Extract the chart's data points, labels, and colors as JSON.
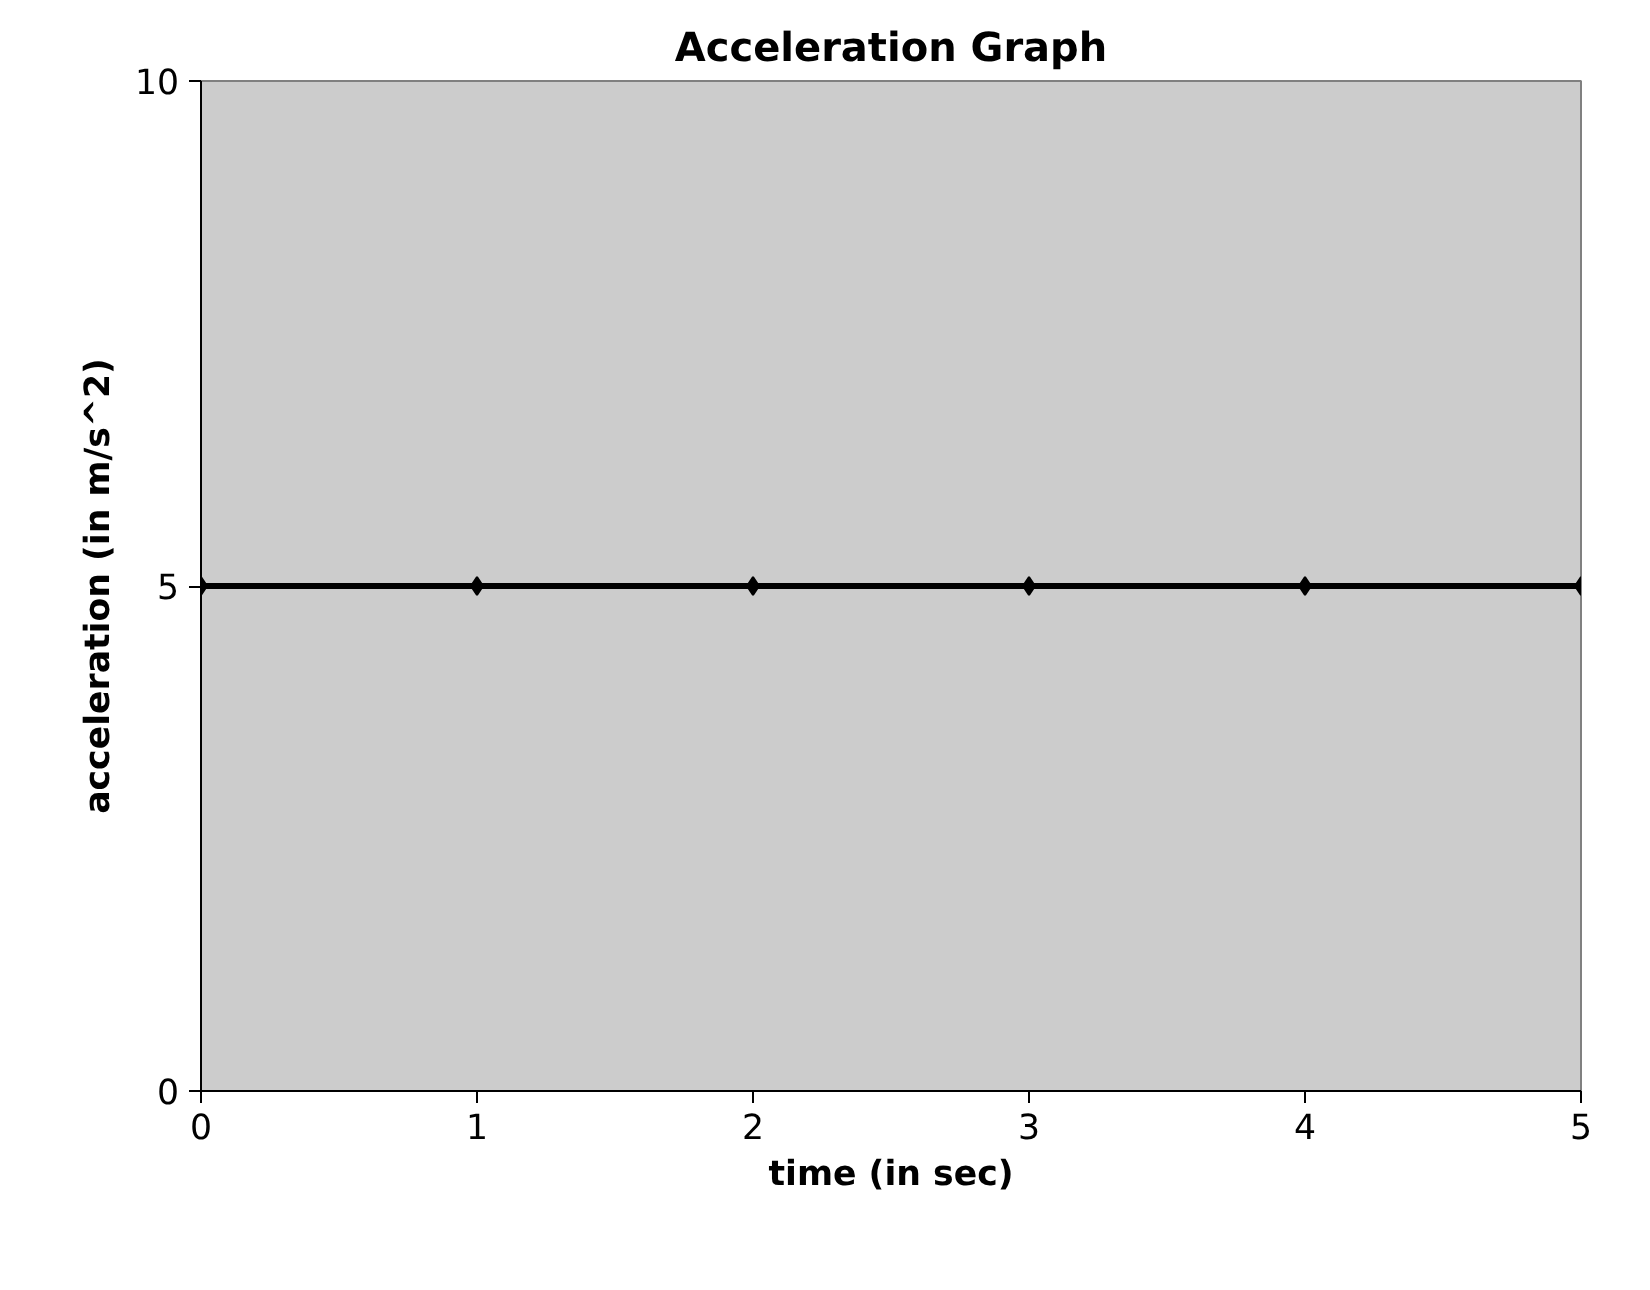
{
  "chart_data": {
    "type": "line",
    "title": "Acceleration Graph",
    "xlabel": "time (in sec)",
    "ylabel": "acceleration (in m/s^2)",
    "x": [
      0,
      1,
      2,
      3,
      4,
      5
    ],
    "series": [
      {
        "color": "#000000",
        "values": [
          5,
          5,
          5,
          5,
          5,
          5
        ]
      }
    ],
    "xlim": [
      0,
      5
    ],
    "xticks": [
      0,
      1,
      2,
      3,
      4,
      5
    ],
    "ylim": [
      0,
      10
    ],
    "yticks": [
      0,
      5,
      10
    ],
    "grid": false,
    "marker": "diamond",
    "line_style": "solid"
  }
}
